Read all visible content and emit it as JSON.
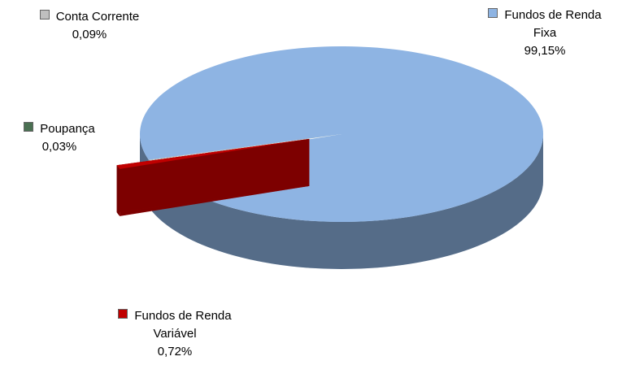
{
  "chart_data": {
    "type": "pie3d",
    "categories": [
      "Fundos de Renda Fixa",
      "Fundos de Renda Variável",
      "Poupança",
      "Conta Corrente"
    ],
    "values": [
      99.15,
      0.72,
      0.03,
      0.09
    ],
    "value_labels": [
      "99,15%",
      "0,72%",
      "0,03%",
      "0,09%"
    ],
    "colors": [
      "#8eb4e3",
      "#c00000",
      "#4a7052",
      "#bfbfbf"
    ]
  }
}
